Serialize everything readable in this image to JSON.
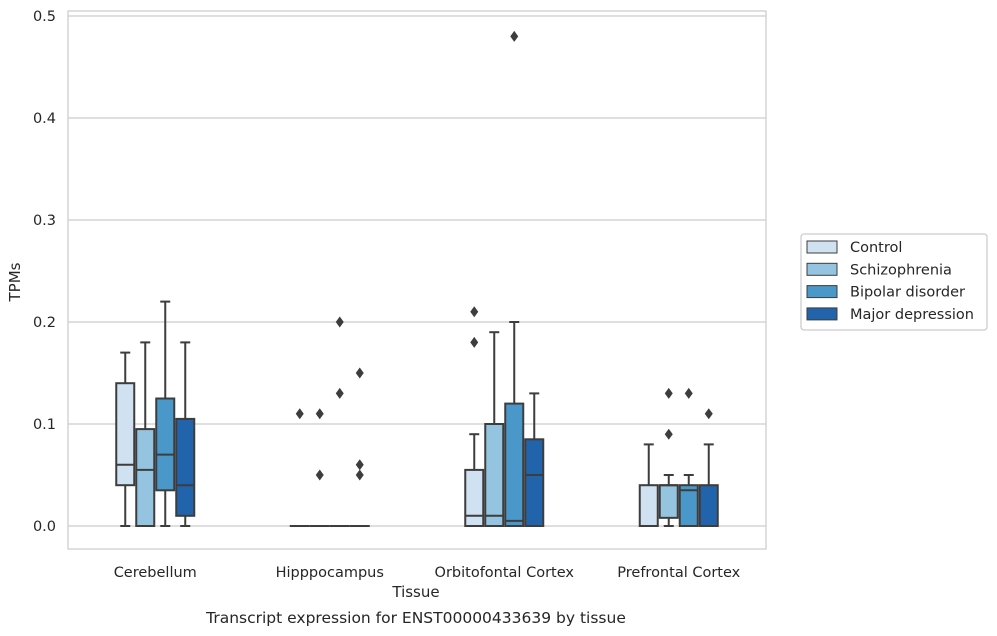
{
  "chart_data": {
    "type": "boxplot",
    "xlabel": "Tissue",
    "ylabel": "TPMs",
    "caption": "Transcript expression for ENST00000433639 by tissue",
    "ylim": [
      -0.023,
      0.505
    ],
    "yticks": [
      "0.0",
      "0.1",
      "0.2",
      "0.3",
      "0.4",
      "0.5"
    ],
    "grid": true,
    "legend_position": "right",
    "categories": [
      "Cerebellum",
      "Hipppocampus",
      "Orbitofontal Cortex",
      "Prefrontal Cortex"
    ],
    "series": [
      {
        "name": "Control",
        "color": "#d0e1f2",
        "boxes": [
          {
            "min": 0.0,
            "q1": 0.04,
            "median": 0.06,
            "q3": 0.14,
            "max": 0.17,
            "outliers": []
          },
          {
            "min": 0.0,
            "q1": 0.0,
            "median": 0.0,
            "q3": 0.0,
            "max": 0.0,
            "outliers": [
              0.11
            ]
          },
          {
            "min": 0.0,
            "q1": 0.0,
            "median": 0.01,
            "q3": 0.055,
            "max": 0.09,
            "outliers": [
              0.18,
              0.21
            ]
          },
          {
            "min": 0.0,
            "q1": 0.0,
            "median": 0.0,
            "q3": 0.04,
            "max": 0.08,
            "outliers": []
          }
        ]
      },
      {
        "name": "Schizophrenia",
        "color": "#94c4df",
        "boxes": [
          {
            "min": 0.0,
            "q1": 0.0,
            "median": 0.055,
            "q3": 0.095,
            "max": 0.18,
            "outliers": []
          },
          {
            "min": 0.0,
            "q1": 0.0,
            "median": 0.0,
            "q3": 0.0,
            "max": 0.0,
            "outliers": [
              0.05,
              0.11
            ]
          },
          {
            "min": 0.0,
            "q1": 0.0,
            "median": 0.01,
            "q3": 0.1,
            "max": 0.19,
            "outliers": []
          },
          {
            "min": 0.0,
            "q1": 0.008,
            "median": 0.04,
            "q3": 0.04,
            "max": 0.05,
            "outliers": [
              0.09,
              0.13
            ]
          }
        ]
      },
      {
        "name": "Bipolar disorder",
        "color": "#4a98c9",
        "boxes": [
          {
            "min": 0.0,
            "q1": 0.035,
            "median": 0.07,
            "q3": 0.125,
            "max": 0.22,
            "outliers": []
          },
          {
            "min": 0.0,
            "q1": 0.0,
            "median": 0.0,
            "q3": 0.0,
            "max": 0.0,
            "outliers": [
              0.13,
              0.2
            ]
          },
          {
            "min": 0.0,
            "q1": 0.0,
            "median": 0.005,
            "q3": 0.12,
            "max": 0.2,
            "outliers": [
              0.48
            ]
          },
          {
            "min": 0.0,
            "q1": 0.0,
            "median": 0.035,
            "q3": 0.04,
            "max": 0.05,
            "outliers": [
              0.13
            ]
          }
        ]
      },
      {
        "name": "Major depression",
        "color": "#2164ab",
        "boxes": [
          {
            "min": 0.0,
            "q1": 0.01,
            "median": 0.04,
            "q3": 0.105,
            "max": 0.18,
            "outliers": []
          },
          {
            "min": 0.0,
            "q1": 0.0,
            "median": 0.0,
            "q3": 0.0,
            "max": 0.0,
            "outliers": [
              0.05,
              0.06,
              0.15
            ]
          },
          {
            "min": 0.0,
            "q1": 0.0,
            "median": 0.05,
            "q3": 0.085,
            "max": 0.13,
            "outliers": []
          },
          {
            "min": 0.0,
            "q1": 0.0,
            "median": 0.0,
            "q3": 0.04,
            "max": 0.08,
            "outliers": [
              0.11
            ]
          }
        ]
      }
    ]
  }
}
